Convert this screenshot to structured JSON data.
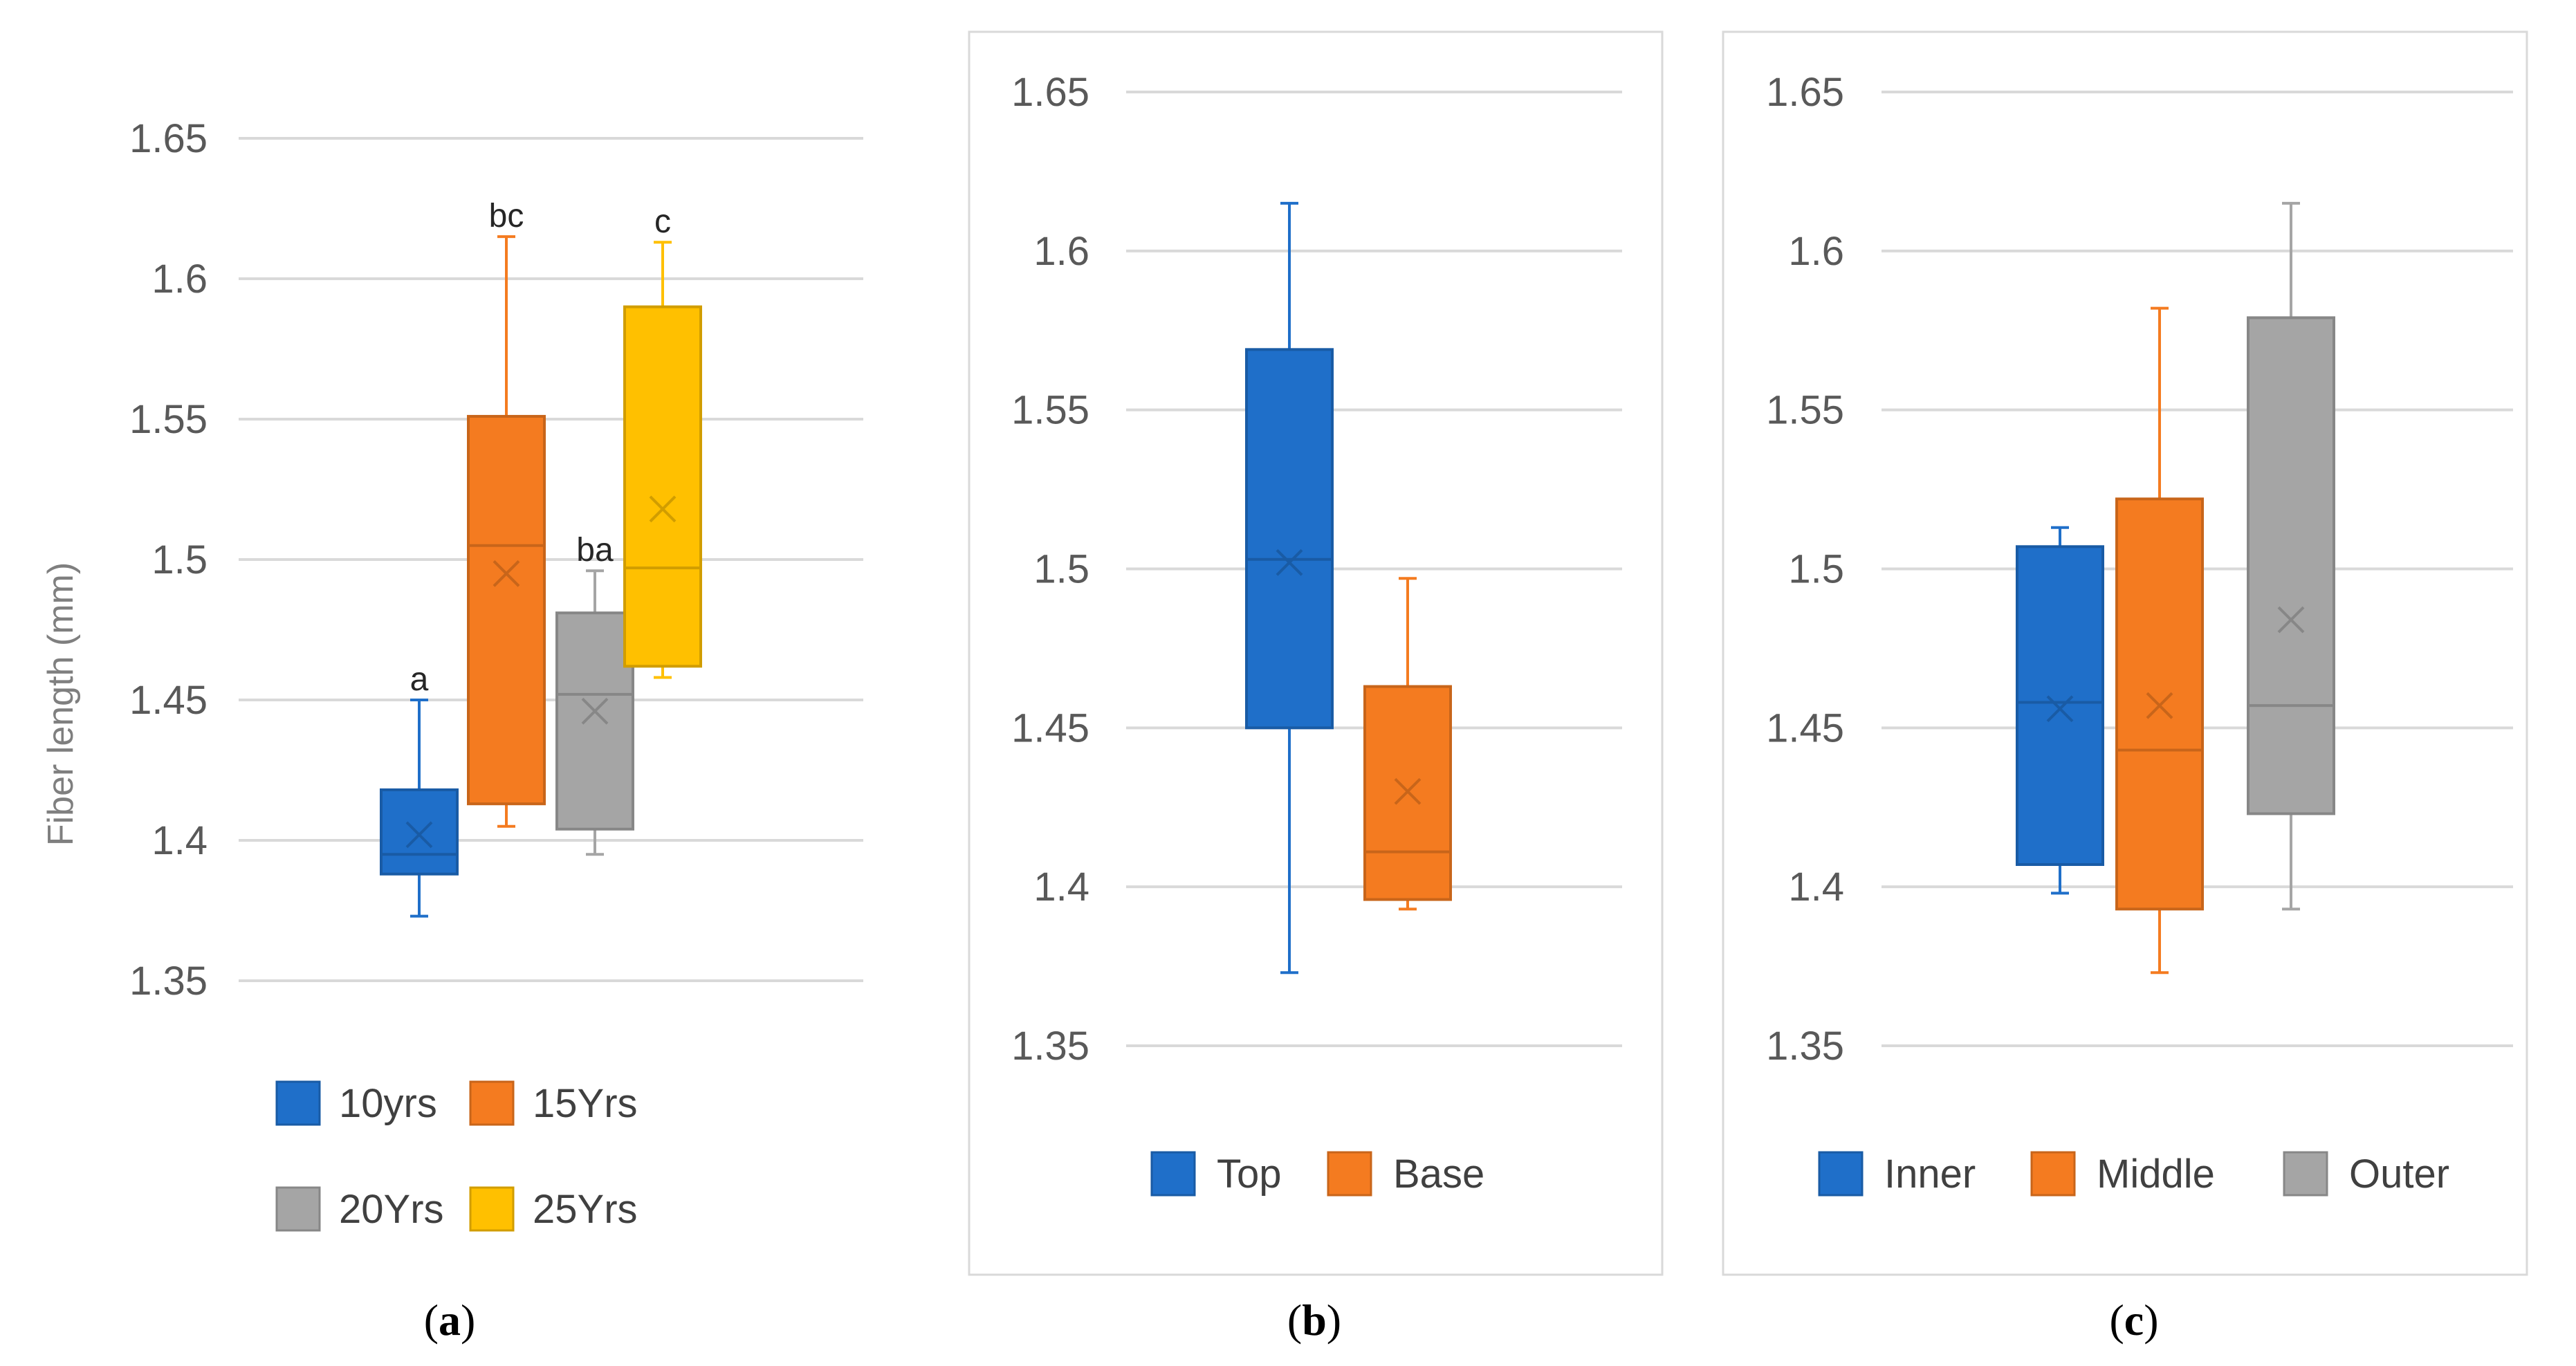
{
  "chart_data": [
    {
      "type": "box",
      "panel_label": "a",
      "panel_label_open": "(",
      "panel_label_close": ")",
      "ylabel": "Fiber length (mm)",
      "ylim": [
        1.35,
        1.65
      ],
      "yticks": [
        "1.35",
        "1.4",
        "1.45",
        "1.5",
        "1.55",
        "1.6",
        "1.65"
      ],
      "grid": true,
      "legend_position": "bottom",
      "series": [
        {
          "name": "10yrs",
          "color": "#1f6fc9",
          "min": 1.373,
          "q1": 1.388,
          "median": 1.395,
          "q3": 1.418,
          "max": 1.45,
          "mean": 1.402,
          "letter": "a"
        },
        {
          "name": "15Yrs",
          "color": "#f47b20",
          "min": 1.405,
          "q1": 1.413,
          "median": 1.505,
          "q3": 1.551,
          "max": 1.615,
          "mean": 1.495,
          "letter": "bc"
        },
        {
          "name": "20Yrs",
          "color": "#a5a5a5",
          "min": 1.395,
          "q1": 1.404,
          "median": 1.452,
          "q3": 1.481,
          "max": 1.496,
          "mean": 1.446,
          "letter": "ba"
        },
        {
          "name": "25Yrs",
          "color": "#ffc000",
          "min": 1.458,
          "q1": 1.462,
          "median": 1.497,
          "q3": 1.59,
          "max": 1.613,
          "mean": 1.518,
          "letter": "c"
        }
      ]
    },
    {
      "type": "box",
      "panel_label": "b",
      "panel_label_open": "(",
      "panel_label_close": ")",
      "ylim": [
        1.35,
        1.65
      ],
      "yticks": [
        "1.35",
        "1.4",
        "1.45",
        "1.5",
        "1.55",
        "1.6",
        "1.65"
      ],
      "grid": true,
      "legend_position": "bottom",
      "series": [
        {
          "name": "Top",
          "color": "#1f6fc9",
          "min": 1.373,
          "q1": 1.45,
          "median": 1.503,
          "q3": 1.569,
          "max": 1.615,
          "mean": 1.502
        },
        {
          "name": "Base",
          "color": "#f47b20",
          "min": 1.393,
          "q1": 1.396,
          "median": 1.411,
          "q3": 1.463,
          "max": 1.497,
          "mean": 1.43
        }
      ]
    },
    {
      "type": "box",
      "panel_label": "c",
      "panel_label_open": "(",
      "panel_label_close": ")",
      "ylim": [
        1.35,
        1.65
      ],
      "yticks": [
        "1.35",
        "1.4",
        "1.45",
        "1.5",
        "1.55",
        "1.6",
        "1.65"
      ],
      "grid": true,
      "legend_position": "bottom",
      "series": [
        {
          "name": "Inner",
          "color": "#1f6fc9",
          "min": 1.398,
          "q1": 1.407,
          "median": 1.458,
          "q3": 1.507,
          "max": 1.513,
          "mean": 1.456
        },
        {
          "name": "Middle",
          "color": "#f47b20",
          "min": 1.373,
          "q1": 1.393,
          "median": 1.443,
          "q3": 1.522,
          "max": 1.582,
          "mean": 1.457
        },
        {
          "name": "Outer",
          "color": "#a5a5a5",
          "min": 1.393,
          "q1": 1.423,
          "median": 1.457,
          "q3": 1.579,
          "max": 1.615,
          "mean": 1.484
        }
      ]
    }
  ]
}
